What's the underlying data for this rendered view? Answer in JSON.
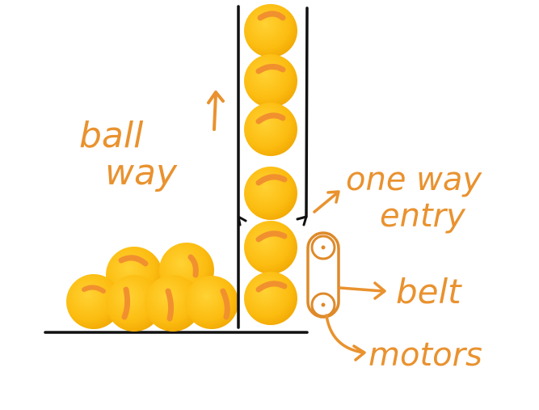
{
  "colors": {
    "ball_fill": "#fcbc10",
    "ball_shadow": "#f0a800",
    "ball_highlight": "#f1902e",
    "ink": "#111111",
    "annotation": "#e9922f",
    "belt": "#de8a2a"
  },
  "labels": {
    "ball_way_line1": "ball",
    "ball_way_line2": "way",
    "one_way_line1": "one way",
    "one_way_line2": "entry",
    "belt": "belt",
    "motors": "motors"
  },
  "icons": {
    "up_arrow": "up-arrow-icon",
    "pointer_arrows": "arrow-icon"
  }
}
